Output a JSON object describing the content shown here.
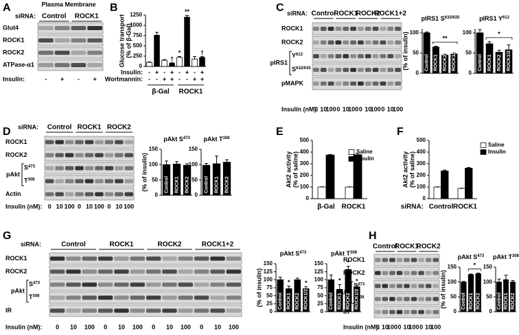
{
  "blots": [
    {
      "letter": "A",
      "title": "Plasma Membrane",
      "sirna_label": "siRNA:",
      "groups": [
        "Control",
        "ROCK1"
      ],
      "rows": [
        {
          "label": "Glut4"
        },
        {
          "label": "ROCK1"
        },
        {
          "label": "ROCK2"
        },
        {
          "label": "ATPase-α1"
        }
      ],
      "insulin_label": "Insulin:",
      "insulin": [
        "-",
        "+",
        "-",
        "+"
      ]
    },
    {
      "letter": "C",
      "sirna_label": "siRNA:",
      "groups": [
        "Control",
        "ROCK1",
        "ROCK2",
        "ROCK1+2"
      ],
      "rows": [
        {
          "label": "ROCK1"
        },
        {
          "label": "ROCK2"
        },
        {
          "label": "Y",
          "sup": "612"
        },
        {
          "label": "S",
          "sup": "632/635"
        },
        {
          "label": "pMAPK"
        }
      ],
      "bracket_label": "pIRS1",
      "insulin_label": "Insulin (nM):",
      "insulin": [
        0,
        10,
        100,
        0,
        10,
        100,
        0,
        10,
        100,
        0,
        10,
        100
      ]
    },
    {
      "letter": "D",
      "sirna_label": "siRNA:",
      "groups": [
        "Control",
        "ROCK1",
        "ROCK2"
      ],
      "rows": [
        {
          "label": "ROCK1"
        },
        {
          "label": "ROCK2"
        },
        {
          "label": "S",
          "sup": "473"
        },
        {
          "label": "T",
          "sup": "308"
        },
        {
          "label": "Actin"
        }
      ],
      "bracket_label": "pAkt",
      "insulin_label": "Insulin (nM):",
      "insulin": [
        0,
        10,
        100,
        0,
        10,
        100,
        0,
        10,
        100
      ]
    },
    {
      "letter": "G",
      "sirna_label": "siRNA:",
      "groups": [
        "Control",
        "ROCK1",
        "ROCK2",
        "ROCK1+2"
      ],
      "rows": [
        {
          "label": "ROCK1"
        },
        {
          "label": "ROCK2"
        },
        {
          "label": "S",
          "sup": "473"
        },
        {
          "label": "T",
          "sup": "308"
        },
        {
          "label": "IR"
        }
      ],
      "bracket_label": "pAkt",
      "insulin_label": "Insulin (nM):",
      "insulin": [
        0,
        10,
        100,
        0,
        10,
        100,
        0,
        10,
        100,
        0,
        10,
        100
      ]
    },
    {
      "letter": "H",
      "groups": [
        "Control",
        "ROCK1",
        "ROCK2"
      ],
      "rows": [
        {
          "label": "ROCK1"
        },
        {
          "label": "ROCK2"
        },
        {
          "label": "S",
          "sup": "473"
        },
        {
          "label": "T",
          "sup": "308"
        },
        {
          "label": "IR"
        }
      ],
      "bracket_label": "pAkt",
      "insulin_label": "Insulin (nM):",
      "insulin": [
        0,
        10,
        100,
        0,
        10,
        100,
        0,
        10,
        100
      ]
    }
  ],
  "chart_data": [
    {
      "type": "bar",
      "letter": "B",
      "ylabel": [
        "Glucose transport",
        "(% of β-Gal)"
      ],
      "ylim": [
        0,
        1250
      ],
      "yticks": [
        0,
        250,
        500,
        750,
        1000,
        1250
      ],
      "values": [
        100,
        760,
        150,
        80,
        220,
        1200,
        180,
        220
      ],
      "errors": [
        10,
        70,
        15,
        10,
        20,
        40,
        60,
        20
      ],
      "colors": [
        "#ffffff",
        "#000000",
        "#ffffff",
        "#000000",
        "#ffffff",
        "#000000",
        "#ffffff",
        "#000000"
      ],
      "bar_notes": [
        null,
        null,
        null,
        "†",
        "*",
        "**",
        null,
        "†"
      ],
      "rows": [
        {
          "label": "Insulin:",
          "marks": [
            "-",
            "+",
            "-",
            "+",
            "-",
            "+",
            "-",
            "+"
          ]
        },
        {
          "label": "Wortmannin:",
          "marks": [
            "-",
            "-",
            "+",
            "+",
            "-",
            "-",
            "+",
            "+"
          ]
        }
      ],
      "groups": [
        "β-Gal",
        "ROCK1"
      ]
    },
    {
      "type": "bar",
      "title": "pIRS1 S",
      "title_sup": "632/635",
      "ylabel": [
        "(% of insulin)"
      ],
      "ylim": [
        0,
        110
      ],
      "yticks": [
        0,
        50,
        100
      ],
      "categories": [
        "Control",
        "ROCK1",
        "ROCK2",
        "ROCK1/2"
      ],
      "values": [
        100,
        65,
        45,
        48
      ],
      "errors": [
        2,
        2,
        2,
        3
      ],
      "color": "#000000",
      "note": "**"
    },
    {
      "type": "bar",
      "title": "pIRS1 Y",
      "title_sup": "612",
      "ylim": [
        0,
        110
      ],
      "yticks": [
        0,
        50,
        100
      ],
      "categories": [
        "Control",
        "ROCK1",
        "ROCK2",
        "ROCK1/2"
      ],
      "values": [
        100,
        73,
        52,
        58
      ],
      "errors": [
        8,
        5,
        5,
        12
      ],
      "color": "#000000",
      "note": "*"
    },
    {
      "type": "bar",
      "title": "pAkt S",
      "title_sup": "473",
      "ylabel": [
        "(% of insulin)"
      ],
      "ylim": [
        0,
        150
      ],
      "yticks": [
        0,
        50,
        100,
        150
      ],
      "categories": [
        "Control",
        "ROCK1",
        "ROCK2"
      ],
      "values": [
        100,
        102,
        98
      ],
      "errors": [
        12,
        8,
        5
      ],
      "color": "#000000"
    },
    {
      "type": "bar",
      "title": "pAkt T",
      "title_sup": "308",
      "ylim": [
        0,
        150
      ],
      "yticks": [
        0,
        50,
        100,
        150
      ],
      "categories": [
        "Control",
        "ROCK1",
        "ROCK2"
      ],
      "values": [
        98,
        103,
        108
      ],
      "errors": [
        6,
        25,
        8
      ],
      "color": "#000000"
    },
    {
      "type": "groupbar",
      "letter": "E",
      "ylabel": [
        "Akt2 activity",
        "(% of saline)"
      ],
      "ylim": [
        0,
        500
      ],
      "yticks": [
        0,
        100,
        200,
        300,
        400,
        500
      ],
      "categories": [
        "β-Gal",
        "ROCK1"
      ],
      "series": [
        {
          "name": "Saline",
          "color": "#ffffff",
          "values": [
            100,
            100
          ],
          "errors": [
            2,
            2
          ]
        },
        {
          "name": "Insulin",
          "color": "#000000",
          "values": [
            375,
            378
          ],
          "errors": [
            5,
            12
          ]
        }
      ]
    },
    {
      "type": "groupbar",
      "letter": "F",
      "ylabel": [
        "Akt2 activity",
        "(% of saline)"
      ],
      "ylim": [
        0,
        500
      ],
      "yticks": [
        0,
        100,
        200,
        300,
        400,
        500
      ],
      "xlabel": "siRNA:",
      "categories": [
        "Control",
        "ROCK1"
      ],
      "series": [
        {
          "name": "Saline",
          "color": "#ffffff",
          "values": [
            100,
            88
          ],
          "errors": [
            2,
            2
          ]
        },
        {
          "name": "Insulin",
          "color": "#000000",
          "values": [
            238,
            262
          ],
          "errors": [
            8,
            6
          ]
        }
      ]
    },
    {
      "type": "bar",
      "title": "pAkt S",
      "title_sup": "473",
      "ylabel": [
        "(% of insulin)"
      ],
      "ylim": [
        0,
        150
      ],
      "yticks": [
        0,
        25,
        50,
        75,
        100,
        125,
        150
      ],
      "categories": [
        "Control",
        "ROCK1",
        "ROCK2",
        "ROCK1/2"
      ],
      "values": [
        100,
        72,
        100,
        72
      ],
      "errors": [
        8,
        8,
        5,
        6
      ],
      "color": "#000000",
      "bar_notes": [
        null,
        "*",
        null,
        "*"
      ]
    },
    {
      "type": "bar",
      "title": "pAkt T",
      "title_sup": "308",
      "ylim": [
        0,
        150
      ],
      "yticks": [
        0,
        25,
        50,
        75,
        100,
        125,
        150
      ],
      "categories": [
        "Control",
        "ROCK1",
        "ROCK2",
        "ROCK1/2"
      ],
      "values": [
        100,
        70,
        132,
        78
      ],
      "errors": [
        15,
        15,
        10,
        5
      ],
      "color": "#000000",
      "bar_notes": [
        null,
        "*",
        "*",
        "*"
      ]
    },
    {
      "type": "bar",
      "title": "pAkt S",
      "title_sup": "473",
      "ylabel": [
        "(% of insulin)"
      ],
      "ylim": [
        0,
        150
      ],
      "yticks": [
        0,
        50,
        100,
        150
      ],
      "categories": [
        "Control",
        "ROCK1",
        "ROCK2"
      ],
      "values": [
        100,
        125,
        128
      ],
      "errors": [
        2,
        2,
        2
      ],
      "color": "#000000",
      "note": "*"
    },
    {
      "type": "bar",
      "title": "pAkt T",
      "title_sup": "308",
      "ylim": [
        0,
        150
      ],
      "yticks": [
        0,
        50,
        100,
        150
      ],
      "categories": [
        "Control",
        "ROCK1",
        "ROCK2"
      ],
      "values": [
        100,
        108,
        100
      ],
      "errors": [
        10,
        15,
        5
      ],
      "color": "#000000"
    }
  ]
}
